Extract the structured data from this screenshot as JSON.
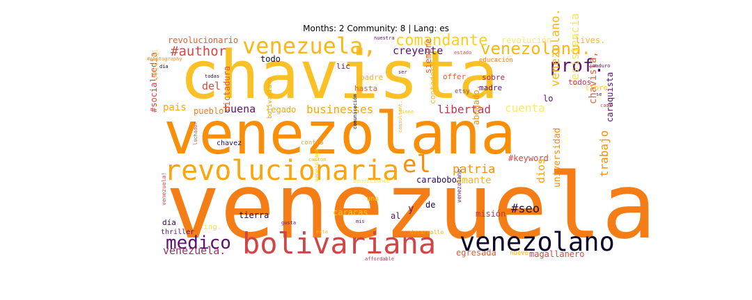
{
  "figure": {
    "title": "Months: 2 Community: 8 | Lang: es"
  },
  "colors": {
    "background": "#ffffff"
  },
  "words": [
    {
      "text": "venezuela",
      "color": "#f57d15"
    },
    {
      "text": "chavista",
      "color": "#fac127"
    },
    {
      "text": "venezolana",
      "color": "#f98e09"
    },
    {
      "text": "bolivariana",
      "color": "#d04545"
    },
    {
      "text": "revolucionaria",
      "color": "#fca50a"
    },
    {
      "text": "venezolano",
      "color": "#0d0829"
    },
    {
      "text": "venezuela,",
      "color": "#fbb61a"
    },
    {
      "text": "venezolana.",
      "color": "#fbb61a"
    },
    {
      "text": "medico",
      "color": "#5c126e"
    },
    {
      "text": "el",
      "color": "#f98e09"
    },
    {
      "text": "prof.",
      "color": "#5c126e"
    },
    {
      "text": "comandante",
      "color": "#fcce25"
    },
    {
      "text": "patria",
      "color": "#f98e09"
    },
    {
      "text": "#author",
      "color": "#d44842"
    },
    {
      "text": "businesses",
      "color": "#fca50a"
    },
    {
      "text": "libertad",
      "color": "#bc3754"
    },
    {
      "text": "venezolano.",
      "color": "#fbb61a"
    },
    {
      "text": "chavista,",
      "color": "#e55c30"
    },
    {
      "text": "resistencia",
      "color": "#f3e55d"
    },
    {
      "text": "#seo",
      "color": "#1f0c48"
    },
    {
      "text": "trabajo",
      "color": "#f98e09"
    },
    {
      "text": "dios",
      "color": "#fca50a"
    },
    {
      "text": "amante",
      "color": "#fcb519"
    },
    {
      "text": "venezuela.",
      "color": "#a52c60"
    },
    {
      "text": "cuenta",
      "color": "#fbe96a"
    },
    {
      "text": "#keyword",
      "color": "#d44842"
    },
    {
      "text": "caraquista",
      "color": "#5c126e"
    },
    {
      "text": "creyente",
      "color": "#5c126e"
    },
    {
      "text": "buena",
      "color": "#5c126e"
    },
    {
      "text": "pais",
      "color": "#fca50a"
    },
    {
      "text": "del",
      "color": "#d44842"
    },
    {
      "text": "universidad",
      "color": "#f98e09"
    },
    {
      "text": "carabobo",
      "color": "#2a0b5a"
    },
    {
      "text": "misión",
      "color": "#bc3754"
    },
    {
      "text": "egresada",
      "color": "#e55c30"
    },
    {
      "text": "magallanero",
      "color": "#d44842"
    },
    {
      "text": "legado",
      "color": "#fca50a"
    },
    {
      "text": "pueblo",
      "color": "#f57d15"
    },
    {
      "text": "revolucionario",
      "color": "#e55c30"
    },
    {
      "text": "revolución",
      "color": "#fbe96a"
    },
    {
      "text": "#socialmedia",
      "color": "#d04545"
    },
    {
      "text": "dictadura",
      "color": "#e55c30"
    },
    {
      "text": "tierra",
      "color": "#1f0c48"
    },
    {
      "text": "caracas",
      "color": "#fcce25"
    },
    {
      "text": "y",
      "color": "#6a176e"
    },
    {
      "text": "al",
      "color": "#5c126e"
    },
    {
      "text": "de",
      "color": "#1f0c48"
    },
    {
      "text": "abogado.",
      "color": "#f98e09"
    },
    {
      "text": "contador",
      "color": "#fbb61a"
    },
    {
      "text": "siempre",
      "color": "#e55c30"
    },
    {
      "text": "hasta",
      "color": "#e55c30"
    },
    {
      "text": "padre",
      "color": "#fbb61a"
    },
    {
      "text": "lic",
      "color": "#5c126e"
    },
    {
      "text": "todo",
      "color": "#0d0829"
    },
    {
      "text": "offer",
      "color": "#e55c30"
    },
    {
      "text": "sobre",
      "color": "#a52c60"
    },
    {
      "text": "madre",
      "color": "#5c126e"
    },
    {
      "text": "todos",
      "color": "#bc3754"
    },
    {
      "text": "lo",
      "color": "#5c126e"
    },
    {
      "text": "libre",
      "color": "#fcce25"
    },
    {
      "text": "lives.",
      "color": "#fbb61a"
    },
    {
      "text": "chavez",
      "color": "#1f0c48"
    },
    {
      "text": "una",
      "color": "#fcce25"
    },
    {
      "text": "día",
      "color": "#2a0b5a"
    },
    {
      "text": "thriller",
      "color": "#5c126e"
    },
    {
      "text": "ing.",
      "color": "#f3e55d"
    },
    {
      "text": "oficial",
      "color": "#fbe96a"
    },
    {
      "text": "contra",
      "color": "#fca50a"
    },
    {
      "text": "bolivariano",
      "color": "#fca50a"
    },
    {
      "text": "comunicación",
      "color": "#000004"
    },
    {
      "text": "etsy",
      "color": "#bc3754"
    },
    {
      "text": "nuevo",
      "color": "#fcb519"
    },
    {
      "text": "bendiciones",
      "color": "#f3e55d"
    },
    {
      "text": "venezuela!",
      "color": "#d44842"
    },
    {
      "text": "venezolana.",
      "color": "#fcce25"
    },
    {
      "text": "venezolano.",
      "color": "#5c126e"
    },
    {
      "text": "desarrollo",
      "color": "#fca50a"
    },
    {
      "text": "esta",
      "color": "#fcb519"
    },
    {
      "text": "gusta",
      "color": "#5c126e"
    },
    {
      "text": "mis",
      "color": "#5c126e"
    },
    {
      "text": "affordable",
      "color": "#bc3754"
    },
    {
      "text": "custom",
      "color": "#fcb519"
    },
    {
      "text": "luchador",
      "color": "#d44842"
    },
    {
      "text": "nuestra",
      "color": "#5c126e"
    },
    {
      "text": "estado",
      "color": "#d44842"
    },
    {
      "text": "educación",
      "color": "#f57d15"
    },
    {
      "text": "maduro",
      "color": "#5c126e"
    },
    {
      "text": "consultant.",
      "color": "#fca50a"
    },
    {
      "text": "ser",
      "color": "#5c126e"
    },
    {
      "text": "todas",
      "color": "#1f0c48"
    },
    {
      "text": "#photography",
      "color": "#f98e09"
    },
    {
      "text": "se",
      "color": "#5c126e"
    },
    {
      "text": "cada",
      "color": "#d44842"
    },
    {
      "text": "tiene",
      "color": "#fcce25"
    },
    {
      "text": "dia",
      "color": "#0d0829"
    }
  ]
}
